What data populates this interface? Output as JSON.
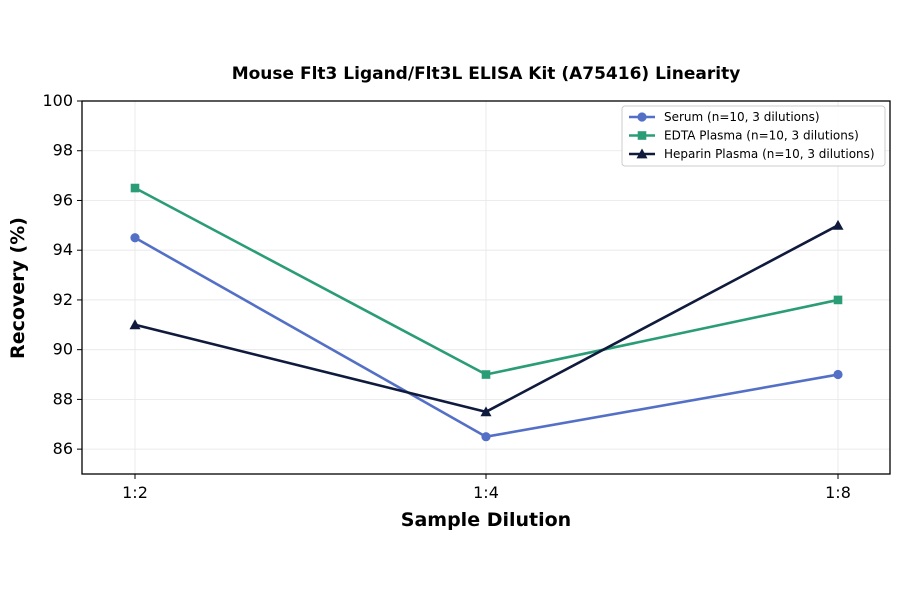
{
  "chart_data": {
    "type": "line",
    "title": "Mouse Flt3 Ligand/Flt3L ELISA Kit (A75416) Linearity",
    "xlabel": "Sample Dilution",
    "ylabel": "Recovery (%)",
    "categories": [
      "1:2",
      "1:4",
      "1:8"
    ],
    "ylim": [
      85,
      100
    ],
    "yticks": [
      "86",
      "88",
      "90",
      "92",
      "94",
      "96",
      "98",
      "100"
    ],
    "grid": true,
    "legend_position": "top-right",
    "series": [
      {
        "name": "Serum (n=10, 3 dilutions)",
        "values": [
          94.5,
          86.5,
          89.0
        ],
        "color": "#5470c6",
        "marker": "circle"
      },
      {
        "name": "EDTA Plasma (n=10, 3 dilutions)",
        "values": [
          96.5,
          89.0,
          92.0
        ],
        "color": "#2a9d76",
        "marker": "square"
      },
      {
        "name": "Heparin Plasma (n=10, 3 dilutions)",
        "values": [
          91.0,
          87.5,
          95.0
        ],
        "color": "#0f1a3c",
        "marker": "triangle"
      }
    ]
  }
}
